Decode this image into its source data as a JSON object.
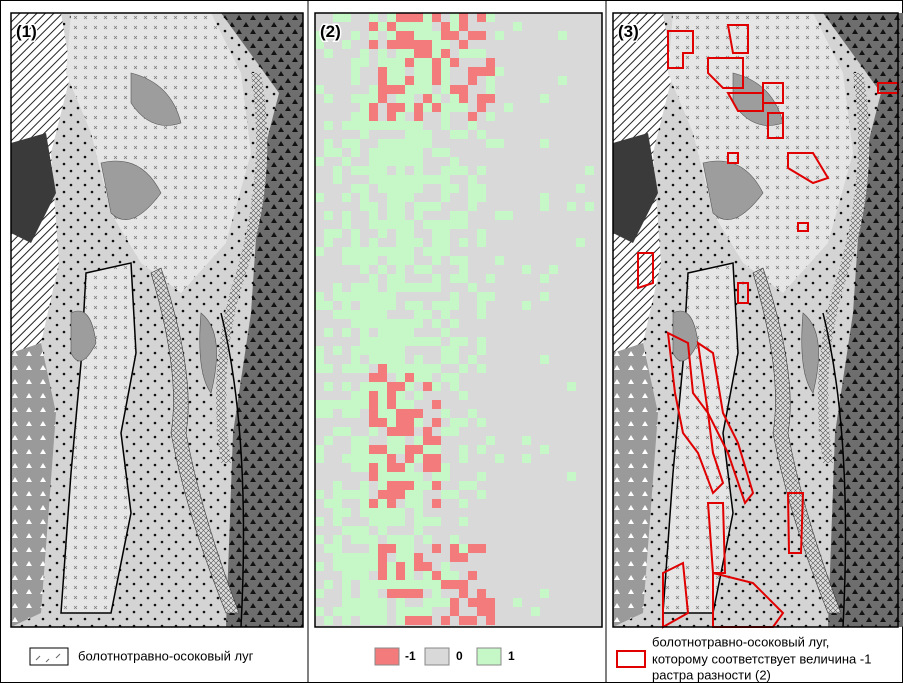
{
  "panels": [
    {
      "label": "(1)",
      "legend": [
        "болотнотравно-осоковый луг"
      ]
    },
    {
      "label": "(2)",
      "legend": [
        "-1",
        "0",
        "1"
      ]
    },
    {
      "label": "(3)",
      "legend": [
        "болотнотравно-осоковый луг,",
        "которому соответствует величина -1",
        "растра разности (2)"
      ]
    }
  ]
}
